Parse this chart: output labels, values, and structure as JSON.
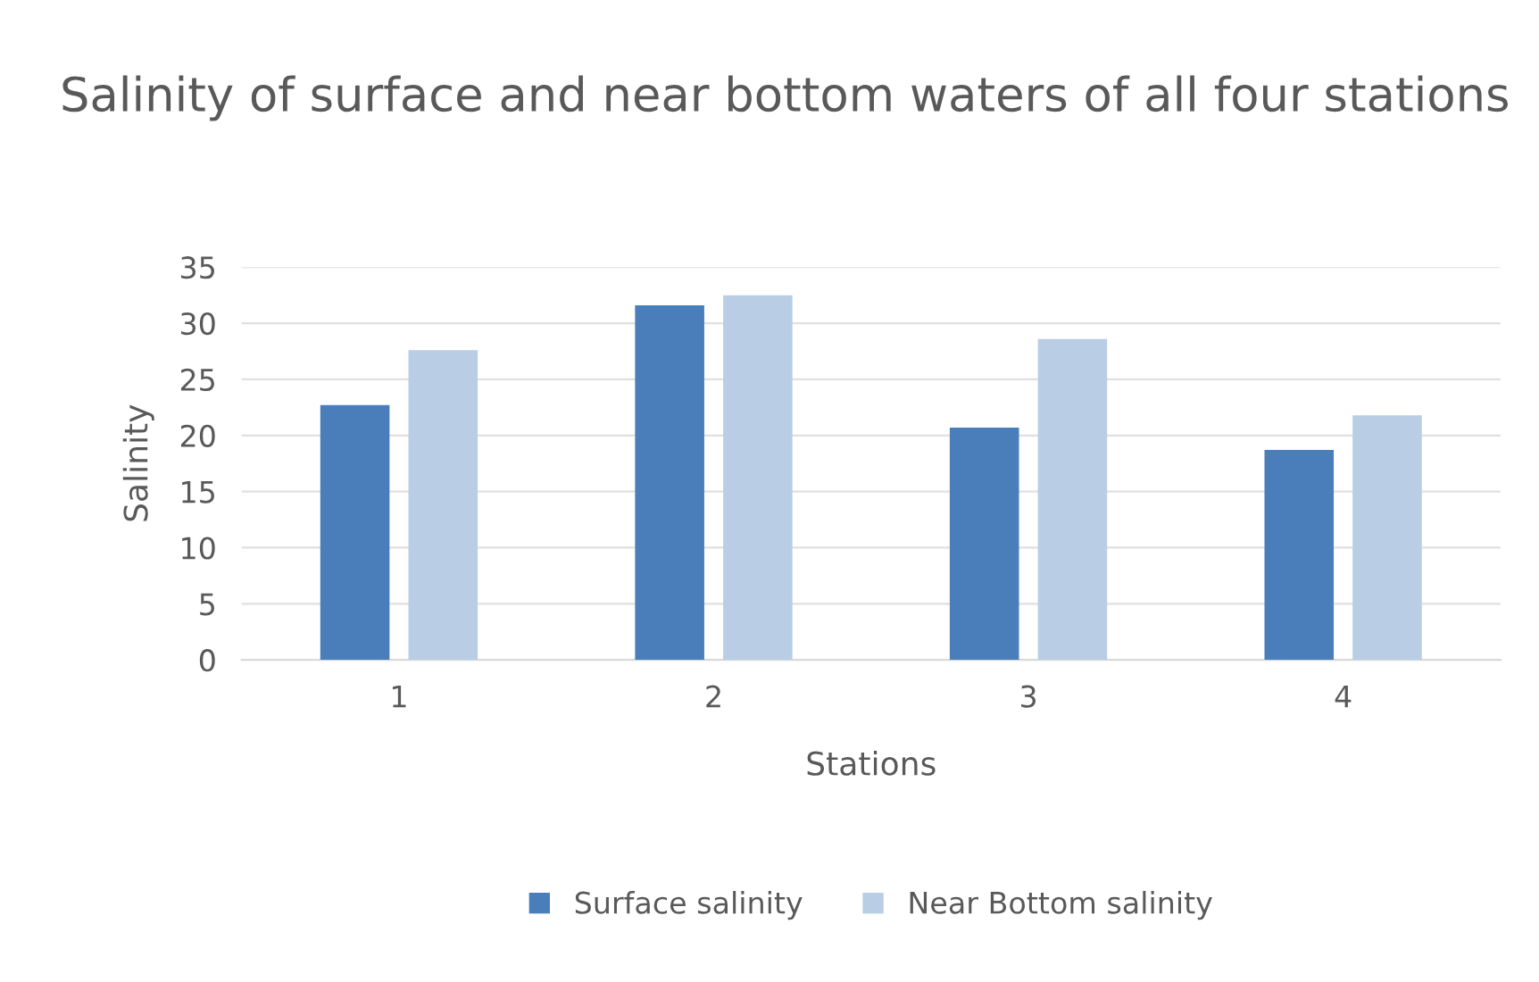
{
  "chart_data": {
    "type": "bar",
    "title": "Salinity of surface and near bottom waters of all four stations",
    "xlabel": "Stations",
    "ylabel": "Salinity",
    "categories": [
      "1",
      "2",
      "3",
      "4"
    ],
    "series": [
      {
        "name": "Surface salinity",
        "color": "#4a7ebb",
        "values": [
          22.7,
          31.6,
          20.7,
          18.7
        ]
      },
      {
        "name": "Near Bottom salinity",
        "color": "#b9cde5",
        "values": [
          27.6,
          32.5,
          28.6,
          21.8
        ]
      }
    ],
    "ylim": [
      0,
      35
    ],
    "yticks": [
      0,
      5,
      10,
      15,
      20,
      25,
      30,
      35
    ],
    "grid": "y",
    "legend": "bottom"
  }
}
